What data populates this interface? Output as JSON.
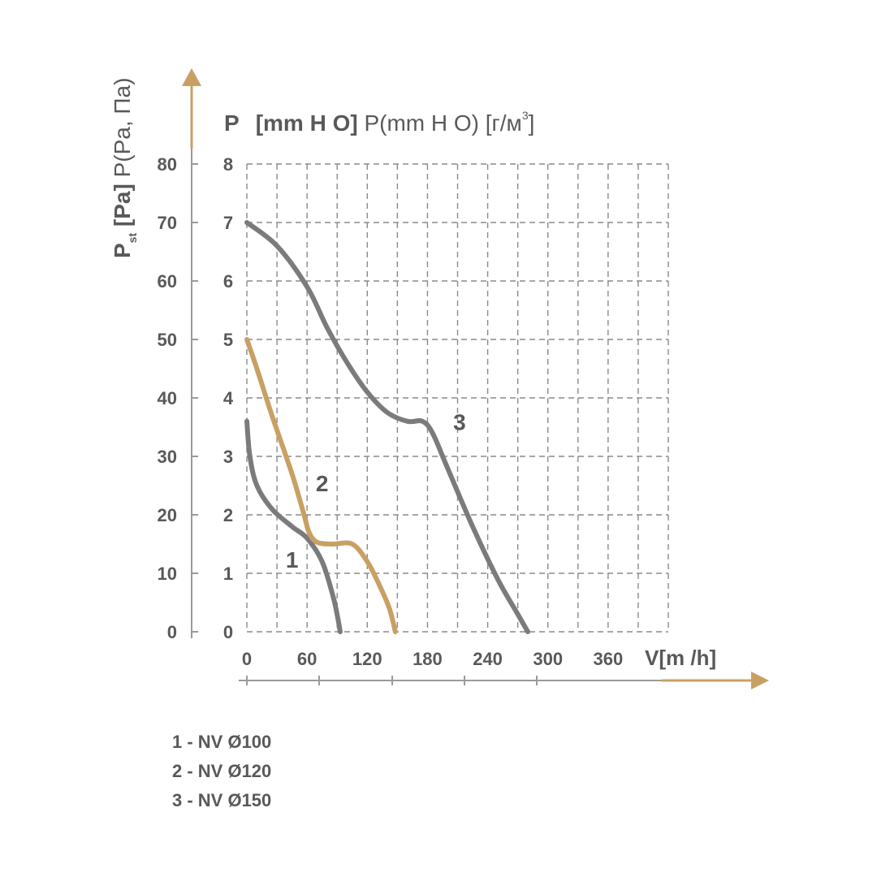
{
  "chart_data": {
    "type": "line",
    "x_label": "V[m /h]",
    "x_ticks": [
      "0",
      "60",
      "120",
      "180",
      "240",
      "300",
      "360"
    ],
    "xlim": [
      0,
      420
    ],
    "y_left_label": "P st [Pa] P(Pa, Па)",
    "y_left_ticks": [
      "0",
      "10",
      "20",
      "30",
      "40",
      "50",
      "60",
      "70",
      "80"
    ],
    "y_left_lim": [
      0,
      80
    ],
    "y_right_label": "P [mm H O] P(mm H O) [г/м³]",
    "y_right_ticks": [
      "0",
      "1",
      "2",
      "3",
      "4",
      "5",
      "6",
      "7",
      "8"
    ],
    "y_right_lim": [
      0,
      8
    ],
    "grid": true,
    "colors": {
      "grey": "#7a7b7d",
      "gold": "#c9a063",
      "text": "#58595b",
      "grid": "#8a8a8a"
    },
    "series": [
      {
        "name": "1",
        "color": "#7a7b7d",
        "points": [
          [
            0,
            36
          ],
          [
            3,
            30
          ],
          [
            10,
            25
          ],
          [
            25,
            21
          ],
          [
            45,
            18
          ],
          [
            60,
            16
          ],
          [
            75,
            12
          ],
          [
            86,
            6
          ],
          [
            91,
            2
          ],
          [
            93,
            0
          ]
        ]
      },
      {
        "name": "2",
        "color": "#c9a063",
        "points": [
          [
            0,
            50
          ],
          [
            10,
            45
          ],
          [
            25,
            37
          ],
          [
            45,
            27
          ],
          [
            57,
            20
          ],
          [
            62,
            17
          ],
          [
            70,
            15.3
          ],
          [
            85,
            15
          ],
          [
            105,
            15
          ],
          [
            120,
            12
          ],
          [
            132,
            8
          ],
          [
            142,
            4
          ],
          [
            148,
            0
          ]
        ]
      },
      {
        "name": "3",
        "color": "#7a7b7d",
        "points": [
          [
            0,
            70
          ],
          [
            30,
            66
          ],
          [
            60,
            59
          ],
          [
            80,
            52
          ],
          [
            100,
            46
          ],
          [
            120,
            41
          ],
          [
            140,
            37.5
          ],
          [
            160,
            36
          ],
          [
            175,
            36
          ],
          [
            185,
            34
          ],
          [
            200,
            28
          ],
          [
            225,
            18
          ],
          [
            250,
            9
          ],
          [
            270,
            3
          ],
          [
            280,
            0
          ]
        ]
      }
    ],
    "curve_labels": [
      {
        "text": "1",
        "x": 45,
        "y": 11
      },
      {
        "text": "2",
        "x": 75,
        "y": 24
      },
      {
        "text": "3",
        "x": 212,
        "y": 34.5
      }
    ],
    "legend": [
      "1 - NV Ø100",
      "2 - NV Ø120",
      "3 - NV Ø150"
    ]
  }
}
